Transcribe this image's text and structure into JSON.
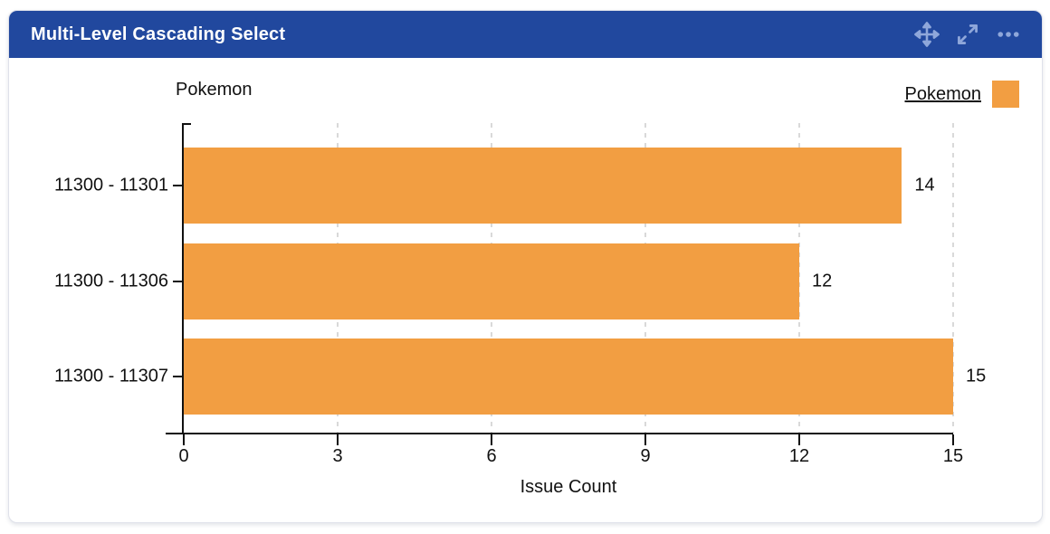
{
  "header": {
    "title": "Multi-Level Cascading Select",
    "icons": [
      {
        "name": "move-icon"
      },
      {
        "name": "expand-icon"
      },
      {
        "name": "more-options-icon"
      }
    ]
  },
  "chart_data": {
    "type": "bar",
    "orientation": "horizontal",
    "categories": [
      "11300 - 11301",
      "11300 - 11306",
      "11300 - 11307"
    ],
    "series": [
      {
        "name": "Pokemon",
        "values": [
          14,
          12,
          15
        ]
      }
    ],
    "value_labels": [
      "14",
      "12",
      "15"
    ],
    "title": "",
    "xlabel": "Issue Count",
    "ylabel": "Pokemon",
    "xlim": [
      0,
      15
    ],
    "x_ticks": [
      "0",
      "3",
      "6",
      "9",
      "12",
      "15"
    ],
    "grid": "vertical-dashed",
    "legend": {
      "label": "Pokemon",
      "position": "top-right"
    }
  },
  "colors": {
    "header_bg": "#21489E",
    "header_icon": "#8FA7DA",
    "bar": "#F29E42",
    "grid": "#D9D9D9",
    "axis": "#111111",
    "card_border": "#DFE1EA"
  }
}
